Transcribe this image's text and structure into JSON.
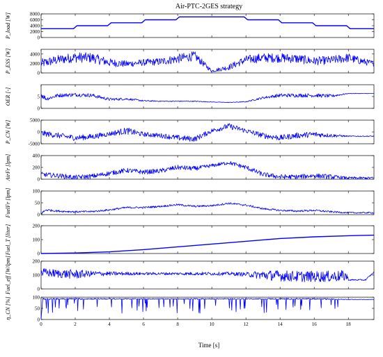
{
  "chart_data": {
    "title": "Air-PTC-2GES strategy",
    "xlabel": "Time [s]",
    "xlim": [
      0,
      19.5
    ],
    "xticks": [
      0,
      2,
      4,
      6,
      8,
      10,
      12,
      14,
      16,
      18
    ],
    "line_color": "#0000ff",
    "panels": [
      {
        "id": "p_load",
        "type": "line",
        "ylabel": "P_load [W]",
        "ylim": [
          0,
          8000
        ],
        "yticks": [
          0,
          2000,
          4000,
          6000,
          8000
        ],
        "x": [
          0,
          1.9,
          1.9,
          2.1,
          3.9,
          4.1,
          5.9,
          6.1,
          7.9,
          8.1,
          11.9,
          12.1,
          13.9,
          14.1,
          15.9,
          16.1,
          17.9,
          18.1,
          19.5
        ],
        "y": [
          3000,
          3000,
          3000,
          4000,
          4000,
          5000,
          5000,
          6000,
          6000,
          7000,
          7000,
          6000,
          6000,
          5000,
          5000,
          4000,
          4000,
          3000,
          3000
        ]
      },
      {
        "id": "p_ess",
        "type": "line",
        "noisy": true,
        "ylabel": "P_ESS [W]",
        "ylim": [
          0,
          5000
        ],
        "yticks": [
          0,
          2000,
          4000
        ],
        "x": [
          0,
          1,
          2,
          3,
          4,
          5,
          6,
          7,
          8,
          9,
          10,
          11,
          12,
          13,
          14,
          15,
          16,
          17,
          18,
          19,
          19.5
        ],
        "y": [
          2000,
          2800,
          3300,
          3200,
          2200,
          1900,
          2200,
          2400,
          3000,
          3600,
          400,
          1200,
          2800,
          3200,
          3200,
          3000,
          2500,
          2700,
          3200,
          2300,
          2000
        ],
        "noise_amp": [
          1000,
          1000,
          1100,
          1100,
          900,
          700,
          700,
          800,
          1000,
          1000,
          300,
          600,
          900,
          1000,
          1000,
          1000,
          900,
          900,
          1000,
          700,
          600
        ]
      },
      {
        "id": "oer",
        "type": "line",
        "noisy": true,
        "ylabel": "OER [-]",
        "ylim": [
          0,
          10
        ],
        "yticks": [
          0,
          5
        ],
        "x": [
          0,
          0.3,
          1,
          2,
          3,
          4,
          5,
          6,
          7,
          8,
          9,
          10,
          11,
          12,
          13,
          14,
          15,
          16,
          17,
          18,
          19.5
        ],
        "y": [
          6,
          4,
          5.5,
          5.8,
          5.5,
          3.8,
          4,
          3.2,
          3,
          3,
          3,
          2.7,
          2.5,
          2.8,
          4.5,
          5.5,
          5.5,
          5.5,
          5.2,
          6.3,
          6.3
        ],
        "noise_amp": [
          1.5,
          0.8,
          0.8,
          0.8,
          0.8,
          0.6,
          0.5,
          0.3,
          0.2,
          0.2,
          0.2,
          0.1,
          0.1,
          0.2,
          0.5,
          0.8,
          0.8,
          0.8,
          0.7,
          0.1,
          0.1
        ]
      },
      {
        "id": "p_cn",
        "type": "line",
        "noisy": true,
        "ylabel": "P_CN [W]",
        "ylim": [
          -5000,
          5000
        ],
        "yticks": [
          -5000,
          0,
          5000
        ],
        "x": [
          0,
          1,
          2,
          3,
          4,
          5,
          6,
          7,
          8,
          9,
          10,
          11,
          12,
          13,
          14,
          15,
          16,
          17,
          18,
          19.5
        ],
        "y": [
          -500,
          -1500,
          -2500,
          -2000,
          -800,
          500,
          -1000,
          -1500,
          -2500,
          -3000,
          500,
          2500,
          500,
          -1500,
          -2500,
          -1500,
          -1000,
          -1500,
          -1800,
          -1800
        ],
        "noise_amp": [
          1200,
          1200,
          1200,
          1200,
          1000,
          1500,
          1000,
          1000,
          1200,
          1200,
          1000,
          1200,
          1000,
          1200,
          1200,
          1200,
          1200,
          800,
          200,
          200
        ]
      },
      {
        "id": "airflow",
        "type": "line",
        "noisy": true,
        "ylabel": "AirFr [lpm]",
        "ylim": [
          0,
          400
        ],
        "yticks": [
          0,
          200,
          400
        ],
        "x": [
          0,
          1,
          2,
          3,
          4,
          5,
          6,
          7,
          8,
          9,
          10,
          11,
          12,
          13,
          14,
          15,
          16,
          17,
          18,
          19.5
        ],
        "y": [
          80,
          60,
          30,
          50,
          100,
          150,
          120,
          140,
          200,
          180,
          230,
          280,
          200,
          80,
          40,
          40,
          60,
          40,
          20,
          20
        ],
        "noise_amp": [
          40,
          40,
          40,
          40,
          40,
          40,
          40,
          40,
          40,
          40,
          30,
          30,
          40,
          40,
          40,
          40,
          40,
          40,
          20,
          20
        ]
      },
      {
        "id": "fuelflow",
        "type": "line",
        "noisy": true,
        "ylabel": "FuelFr [lpm]",
        "ylim": [
          0,
          100
        ],
        "yticks": [
          0,
          50,
          100
        ],
        "x": [
          0,
          0.3,
          1,
          2,
          3,
          4,
          5,
          6,
          7,
          8,
          9,
          10,
          11,
          12,
          13,
          14,
          15,
          16,
          17,
          18,
          19.5
        ],
        "y": [
          5,
          20,
          15,
          12,
          13,
          20,
          30,
          30,
          35,
          42,
          35,
          38,
          48,
          40,
          25,
          18,
          15,
          18,
          12,
          8,
          8
        ],
        "noise_amp": [
          5,
          5,
          4,
          4,
          4,
          4,
          4,
          4,
          4,
          4,
          4,
          4,
          4,
          4,
          4,
          4,
          4,
          4,
          4,
          3,
          3
        ]
      },
      {
        "id": "fuel_total",
        "type": "line",
        "ylabel": "Fuel_T [liter]",
        "ylim": [
          0,
          200
        ],
        "yticks": [
          0,
          100,
          200
        ],
        "x": [
          0,
          2,
          4,
          6,
          8,
          10,
          12,
          14,
          16,
          18,
          19.5
        ],
        "y": [
          0,
          4,
          12,
          28,
          48,
          68,
          88,
          108,
          120,
          128,
          132
        ]
      },
      {
        "id": "fuel_eff",
        "type": "line",
        "noisy": true,
        "ylabel": "Fuel_eff [W/lpm]",
        "ylim": [
          0,
          200
        ],
        "yticks": [
          0,
          100,
          200
        ],
        "x": [
          0,
          1,
          2,
          3,
          4,
          5,
          6,
          7,
          8,
          9,
          10,
          11,
          12,
          13,
          14,
          15,
          16,
          17,
          17.9,
          18,
          19,
          19.5
        ],
        "y": [
          120,
          110,
          105,
          110,
          110,
          110,
          110,
          110,
          110,
          110,
          110,
          110,
          105,
          100,
          95,
          90,
          90,
          90,
          95,
          65,
          65,
          120
        ],
        "noise_amp": [
          30,
          30,
          35,
          20,
          15,
          12,
          10,
          10,
          10,
          12,
          12,
          12,
          15,
          35,
          40,
          40,
          40,
          40,
          40,
          5,
          5,
          5
        ]
      },
      {
        "id": "eta",
        "type": "line",
        "noisy": true,
        "ylabel": "η_CN [%]",
        "ylim": [
          0,
          100
        ],
        "yticks": [
          0,
          50,
          100
        ],
        "x": [
          0,
          0.1,
          0.2,
          1,
          2,
          3,
          4,
          5,
          6,
          7,
          8,
          9,
          10,
          11,
          12,
          13,
          14,
          15,
          16,
          17,
          18,
          19.5
        ],
        "y": [
          0,
          95,
          92,
          93,
          93,
          93,
          93,
          93,
          93,
          93,
          93,
          93,
          93,
          93,
          93,
          93,
          93,
          93,
          93,
          92,
          90,
          90
        ],
        "noise_amp": [
          0,
          2,
          3,
          3,
          3,
          3,
          3,
          2,
          2,
          2,
          2,
          2,
          2,
          2,
          2,
          2,
          3,
          3,
          3,
          3,
          1,
          1
        ],
        "spikes": true
      }
    ]
  }
}
